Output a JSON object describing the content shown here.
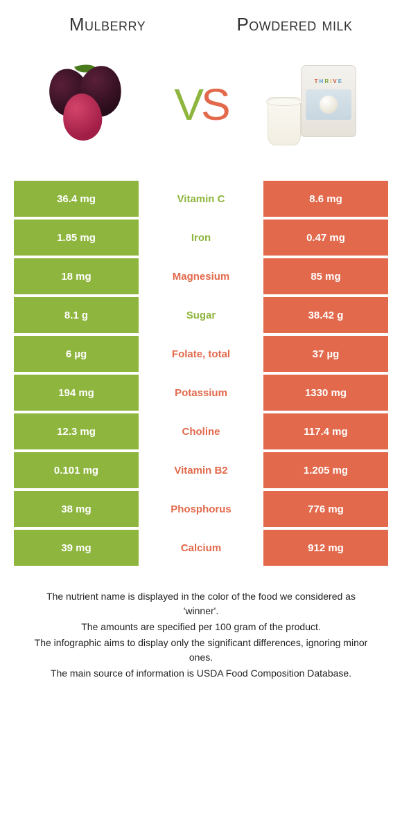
{
  "colors": {
    "left": "#8eb53e",
    "right": "#e2694b",
    "text": "#333333",
    "white": "#ffffff"
  },
  "header": {
    "left_title": "Mulberry",
    "right_title": "Powdered milk",
    "vs_v": "V",
    "vs_s": "S"
  },
  "rows": [
    {
      "left": "36.4 mg",
      "nutrient": "Vitamin C",
      "right": "8.6 mg",
      "winner": "left"
    },
    {
      "left": "1.85 mg",
      "nutrient": "Iron",
      "right": "0.47 mg",
      "winner": "left"
    },
    {
      "left": "18 mg",
      "nutrient": "Magnesium",
      "right": "85 mg",
      "winner": "right"
    },
    {
      "left": "8.1 g",
      "nutrient": "Sugar",
      "right": "38.42 g",
      "winner": "left"
    },
    {
      "left": "6 µg",
      "nutrient": "Folate, total",
      "right": "37 µg",
      "winner": "right"
    },
    {
      "left": "194 mg",
      "nutrient": "Potassium",
      "right": "1330 mg",
      "winner": "right"
    },
    {
      "left": "12.3 mg",
      "nutrient": "Choline",
      "right": "117.4 mg",
      "winner": "right"
    },
    {
      "left": "0.101 mg",
      "nutrient": "Vitamin B2",
      "right": "1.205 mg",
      "winner": "right"
    },
    {
      "left": "38 mg",
      "nutrient": "Phosphorus",
      "right": "776 mg",
      "winner": "right"
    },
    {
      "left": "39 mg",
      "nutrient": "Calcium",
      "right": "912 mg",
      "winner": "right"
    }
  ],
  "footer": [
    "The nutrient name is displayed in the color of the food we considered as 'winner'.",
    "The amounts are specified per 100 gram of the product.",
    "The infographic aims to display only the significant differences, ignoring minor ones.",
    "The main source of information is USDA Food Composition Database."
  ]
}
